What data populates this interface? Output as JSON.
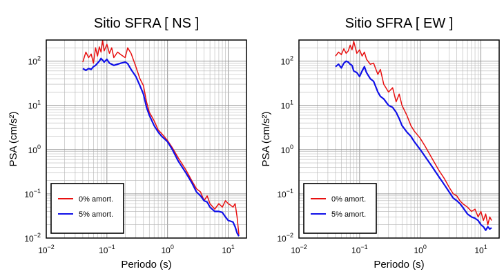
{
  "chart_data": [
    {
      "type": "line",
      "title": "Sitio SFRA [ NS ]",
      "xlabel": "Periodo (s)",
      "ylabel": "PSA (cm/s²)",
      "xscale": "log",
      "yscale": "log",
      "xlim": [
        0.01,
        20
      ],
      "ylim": [
        0.01,
        300
      ],
      "grid": true,
      "legend_position": "bottom-left",
      "x_ticks": [
        {
          "base": "10",
          "exp": "−2"
        },
        {
          "base": "10",
          "exp": "−1"
        },
        {
          "base": "10",
          "exp": "0"
        },
        {
          "base": "10",
          "exp": "1"
        }
      ],
      "y_ticks": [
        {
          "base": "10",
          "exp": "−2"
        },
        {
          "base": "10",
          "exp": "−1"
        },
        {
          "base": "10",
          "exp": "0"
        },
        {
          "base": "10",
          "exp": "1"
        },
        {
          "base": "10",
          "exp": "2"
        }
      ],
      "series": [
        {
          "name": "0% amort.",
          "color": "#e81010",
          "x": [
            0.04,
            0.045,
            0.05,
            0.055,
            0.06,
            0.065,
            0.07,
            0.075,
            0.08,
            0.085,
            0.09,
            0.1,
            0.11,
            0.12,
            0.13,
            0.15,
            0.17,
            0.2,
            0.22,
            0.25,
            0.3,
            0.35,
            0.4,
            0.45,
            0.5,
            0.6,
            0.7,
            0.8,
            1.0,
            1.2,
            1.5,
            2.0,
            2.5,
            3.0,
            3.5,
            4.0,
            4.5,
            5.0,
            6.0,
            7.0,
            8.0,
            9.0,
            10.0,
            11.0,
            12.0,
            13.0,
            14.0,
            15.0
          ],
          "y": [
            95,
            160,
            120,
            145,
            90,
            200,
            130,
            210,
            160,
            290,
            170,
            240,
            150,
            200,
            120,
            160,
            140,
            120,
            200,
            150,
            75,
            40,
            28,
            12,
            7,
            4.5,
            2.8,
            2.3,
            1.6,
            1.1,
            0.65,
            0.35,
            0.2,
            0.13,
            0.11,
            0.07,
            0.09,
            0.06,
            0.045,
            0.06,
            0.05,
            0.07,
            0.06,
            0.055,
            0.05,
            0.06,
            0.03,
            0.012
          ]
        },
        {
          "name": "5% amort.",
          "color": "#1010e8",
          "x": [
            0.04,
            0.045,
            0.05,
            0.055,
            0.06,
            0.065,
            0.07,
            0.075,
            0.08,
            0.085,
            0.09,
            0.1,
            0.11,
            0.12,
            0.13,
            0.15,
            0.17,
            0.2,
            0.22,
            0.25,
            0.3,
            0.35,
            0.4,
            0.45,
            0.5,
            0.6,
            0.7,
            0.8,
            1.0,
            1.2,
            1.5,
            2.0,
            2.5,
            3.0,
            3.5,
            4.0,
            4.5,
            5.0,
            6.0,
            7.0,
            8.0,
            9.0,
            10.0,
            11.0,
            12.0,
            13.0,
            14.0,
            15.0
          ],
          "y": [
            68,
            62,
            68,
            65,
            75,
            80,
            90,
            100,
            115,
            105,
            95,
            110,
            90,
            85,
            80,
            85,
            90,
            95,
            88,
            65,
            45,
            28,
            18,
            9,
            6,
            3.5,
            2.5,
            2.0,
            1.5,
            1.0,
            0.55,
            0.3,
            0.18,
            0.11,
            0.09,
            0.07,
            0.065,
            0.05,
            0.04,
            0.04,
            0.038,
            0.03,
            0.025,
            0.024,
            0.023,
            0.018,
            0.013,
            0.011
          ]
        }
      ]
    },
    {
      "type": "line",
      "title": "Sitio SFRA [ EW ]",
      "xlabel": "Periodo (s)",
      "ylabel": "PSA (cm/s²)",
      "xscale": "log",
      "yscale": "log",
      "xlim": [
        0.01,
        20
      ],
      "ylim": [
        0.01,
        300
      ],
      "grid": true,
      "legend_position": "bottom-left",
      "x_ticks": [
        {
          "base": "10",
          "exp": "−2"
        },
        {
          "base": "10",
          "exp": "−1"
        },
        {
          "base": "10",
          "exp": "0"
        },
        {
          "base": "10",
          "exp": "1"
        }
      ],
      "y_ticks": [
        {
          "base": "10",
          "exp": "−2"
        },
        {
          "base": "10",
          "exp": "−1"
        },
        {
          "base": "10",
          "exp": "0"
        },
        {
          "base": "10",
          "exp": "1"
        },
        {
          "base": "10",
          "exp": "2"
        }
      ],
      "series": [
        {
          "name": "0% amort.",
          "color": "#e81010",
          "x": [
            0.04,
            0.045,
            0.05,
            0.055,
            0.06,
            0.065,
            0.07,
            0.075,
            0.08,
            0.09,
            0.1,
            0.11,
            0.12,
            0.13,
            0.15,
            0.17,
            0.2,
            0.22,
            0.25,
            0.3,
            0.35,
            0.4,
            0.45,
            0.5,
            0.6,
            0.7,
            0.8,
            1.0,
            1.2,
            1.5,
            2.0,
            2.5,
            3.0,
            3.5,
            4.0,
            4.5,
            5.0,
            6.0,
            7.0,
            8.0,
            9.0,
            10.0,
            11.0,
            12.0,
            13.0,
            14.0,
            15.0
          ],
          "y": [
            130,
            160,
            140,
            190,
            150,
            170,
            230,
            180,
            280,
            150,
            180,
            130,
            160,
            110,
            85,
            90,
            50,
            65,
            30,
            20,
            25,
            12,
            18,
            10,
            6,
            3.5,
            2.6,
            1.8,
            1.2,
            0.7,
            0.35,
            0.22,
            0.14,
            0.1,
            0.09,
            0.07,
            0.06,
            0.05,
            0.04,
            0.045,
            0.03,
            0.04,
            0.025,
            0.035,
            0.02,
            0.03,
            0.025
          ]
        },
        {
          "name": "5% amort.",
          "color": "#1010e8",
          "x": [
            0.04,
            0.045,
            0.05,
            0.055,
            0.06,
            0.065,
            0.07,
            0.075,
            0.08,
            0.09,
            0.1,
            0.11,
            0.12,
            0.13,
            0.15,
            0.17,
            0.2,
            0.22,
            0.25,
            0.3,
            0.35,
            0.4,
            0.45,
            0.5,
            0.6,
            0.7,
            0.8,
            1.0,
            1.2,
            1.5,
            2.0,
            2.5,
            3.0,
            3.5,
            4.0,
            4.5,
            5.0,
            6.0,
            7.0,
            8.0,
            9.0,
            10.0,
            11.0,
            12.0,
            13.0,
            14.0,
            15.0
          ],
          "y": [
            75,
            85,
            70,
            90,
            100,
            95,
            85,
            80,
            60,
            55,
            45,
            60,
            75,
            55,
            40,
            35,
            20,
            16,
            14,
            10,
            9,
            7,
            5,
            3.5,
            2.5,
            2.0,
            1.5,
            1.0,
            0.7,
            0.45,
            0.25,
            0.16,
            0.11,
            0.08,
            0.07,
            0.06,
            0.05,
            0.035,
            0.03,
            0.028,
            0.025,
            0.02,
            0.018,
            0.015,
            0.018,
            0.016,
            0.017
          ]
        }
      ]
    }
  ]
}
